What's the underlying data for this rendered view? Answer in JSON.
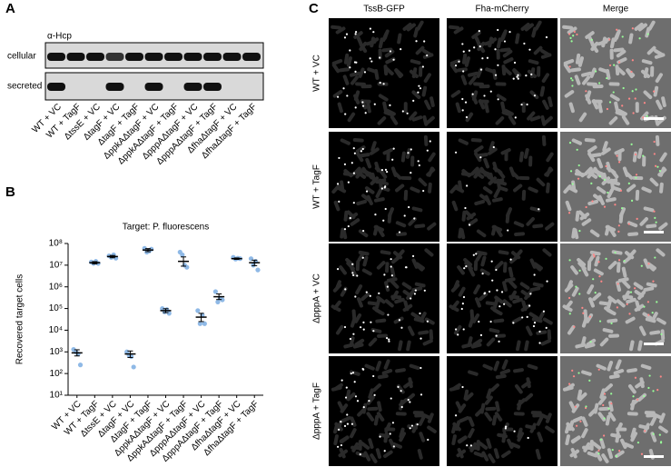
{
  "panel_labels": [
    "A",
    "B",
    "C"
  ],
  "blot": {
    "antibody": "α-Hcp",
    "rows": [
      "cellular",
      "secreted"
    ]
  },
  "strains": [
    "WT + VC",
    "WT + TagF",
    "ΔtssE + VC",
    "ΔtagF + VC",
    "ΔtagF + TagF",
    "ΔppkAΔtagF + VC",
    "ΔppkAΔtagF + TagF",
    "ΔpppAΔtagF + VC",
    "ΔpppAΔtagF + TagF",
    "ΔfhaΔtagF + VC",
    "ΔfhaΔtagF + TagF"
  ],
  "chart_data": {
    "type": "dot",
    "title": "Target: P. fluorescens",
    "y_label": "Recovered target cells",
    "categories": [
      "WT + VC",
      "WT + TagF",
      "ΔtssE + VC",
      "ΔtagF + VC",
      "ΔtagF + TagF",
      "ΔppkAΔtagF + VC",
      "ΔppkAΔtagF + TagF",
      "ΔpppAΔtagF + VC",
      "ΔpppAΔtagF + TagF",
      "ΔfhaΔtagF + VC",
      "ΔfhaΔtagF + TagF"
    ],
    "values": [
      900,
      13000000,
      25000000,
      800,
      50000000,
      80000,
      15000000,
      40000,
      350000,
      20000000,
      13000000
    ],
    "lower": [
      650,
      11500000,
      22000000,
      550,
      42000000,
      65000,
      9000000,
      25000,
      260000,
      18500000,
      9500000
    ],
    "upper": [
      1250,
      14500000,
      28000000,
      1100,
      58000000,
      98000,
      24000000,
      60000,
      470000,
      21500000,
      17000000
    ],
    "points": [
      [
        1300,
        1000,
        800,
        250
      ],
      [
        14000000,
        12000000,
        15000000,
        12000000
      ],
      [
        27000000,
        23000000,
        30000000,
        21000000
      ],
      [
        1000,
        700,
        600,
        200
      ],
      [
        60000000,
        40000000,
        45000000,
        55000000
      ],
      [
        100000,
        70000,
        90000,
        60000
      ],
      [
        40000000,
        30000000,
        10000000,
        8000000
      ],
      [
        80000,
        20000,
        50000,
        20000
      ],
      [
        600000,
        200000,
        300000,
        250000
      ],
      [
        23000000,
        19000000,
        21000000,
        20000000
      ],
      [
        20000000,
        10000000,
        15000000,
        6000000
      ]
    ],
    "point_color": "#8fb9e6",
    "log_y": true,
    "ylim": [
      10,
      100000000
    ],
    "yticks": [
      {
        "value": 10,
        "label": "10¹"
      },
      {
        "value": 100,
        "label": "10²"
      },
      {
        "value": 1000,
        "label": "10³"
      },
      {
        "value": 10000,
        "label": "10⁴"
      },
      {
        "value": 100000,
        "label": "10⁵"
      },
      {
        "value": 1000000,
        "label": "10⁶"
      },
      {
        "value": 10000000,
        "label": "10⁷"
      },
      {
        "value": 100000000,
        "label": "10⁸"
      }
    ]
  },
  "microscopy": {
    "channels": [
      {
        "name": "TssB-GFP",
        "color": "#33cc33"
      },
      {
        "name": "Fha-mCherry",
        "color": "#e02020"
      },
      {
        "name": "Merge",
        "color": "#000000"
      }
    ],
    "rows": [
      "WT + VC",
      "WT + TagF",
      "ΔpppA + VC",
      "ΔpppA + TagF"
    ]
  }
}
